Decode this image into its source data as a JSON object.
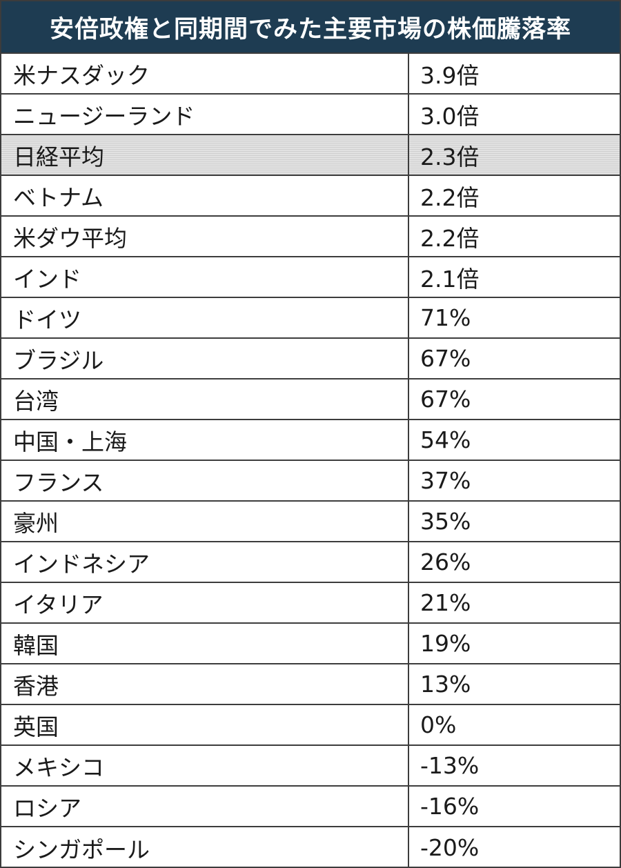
{
  "chart_data": {
    "type": "table",
    "title": "安倍政権と同期間でみた主要市場の株価騰落率",
    "rows": [
      {
        "name": "米ナスダック",
        "value": "3.9倍"
      },
      {
        "name": "ニュージーランド",
        "value": "3.0倍"
      },
      {
        "name": "日経平均",
        "value": "2.3倍",
        "highlight": true
      },
      {
        "name": "ベトナム",
        "value": "2.2倍"
      },
      {
        "name": "米ダウ平均",
        "value": "2.2倍"
      },
      {
        "name": "インド",
        "value": "2.1倍"
      },
      {
        "name": "ドイツ",
        "value": "71%"
      },
      {
        "name": "ブラジル",
        "value": "67%"
      },
      {
        "name": "台湾",
        "value": "67%"
      },
      {
        "name": "中国・上海",
        "value": "54%"
      },
      {
        "name": "フランス",
        "value": "37%"
      },
      {
        "name": "豪州",
        "value": "35%"
      },
      {
        "name": "インドネシア",
        "value": "26%"
      },
      {
        "name": "イタリア",
        "value": "21%"
      },
      {
        "name": "韓国",
        "value": "19%"
      },
      {
        "name": "香港",
        "value": "13%"
      },
      {
        "name": "英国",
        "value": "0%"
      },
      {
        "name": "メキシコ",
        "value": "-13%"
      },
      {
        "name": "ロシア",
        "value": "-16%"
      },
      {
        "name": "シンガポール",
        "value": "-20%"
      }
    ]
  },
  "colors": {
    "header_background": "#1e3c52",
    "header_text": "#ffffff",
    "highlight_row": "#e2e2e2",
    "border": "#3c3c3c"
  }
}
